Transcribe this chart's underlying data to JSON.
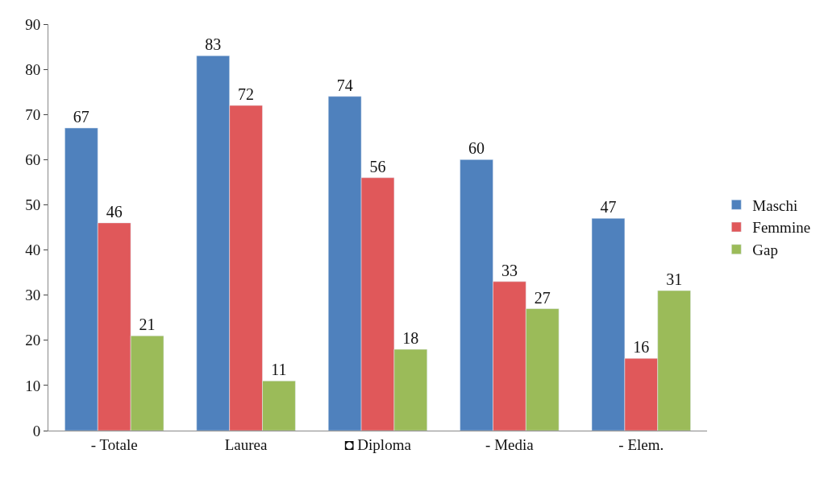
{
  "chart_data": {
    "type": "bar",
    "categories": [
      "- Totale",
      "Laurea",
      "◘ Diploma",
      "- Media",
      "- Elem."
    ],
    "series": [
      {
        "name": "Maschi",
        "color": "#4f81bd",
        "values": [
          67,
          83,
          74,
          60,
          47
        ]
      },
      {
        "name": "Femmine",
        "color": "#e0585a",
        "values": [
          46,
          72,
          56,
          33,
          16
        ]
      },
      {
        "name": "Gap",
        "color": "#9bbb59",
        "values": [
          21,
          11,
          18,
          27,
          31
        ]
      }
    ],
    "ylim": [
      0,
      90
    ],
    "yticks": [
      0,
      10,
      20,
      30,
      40,
      50,
      60,
      70,
      80,
      90
    ],
    "legend": "right",
    "data_labels": true
  }
}
